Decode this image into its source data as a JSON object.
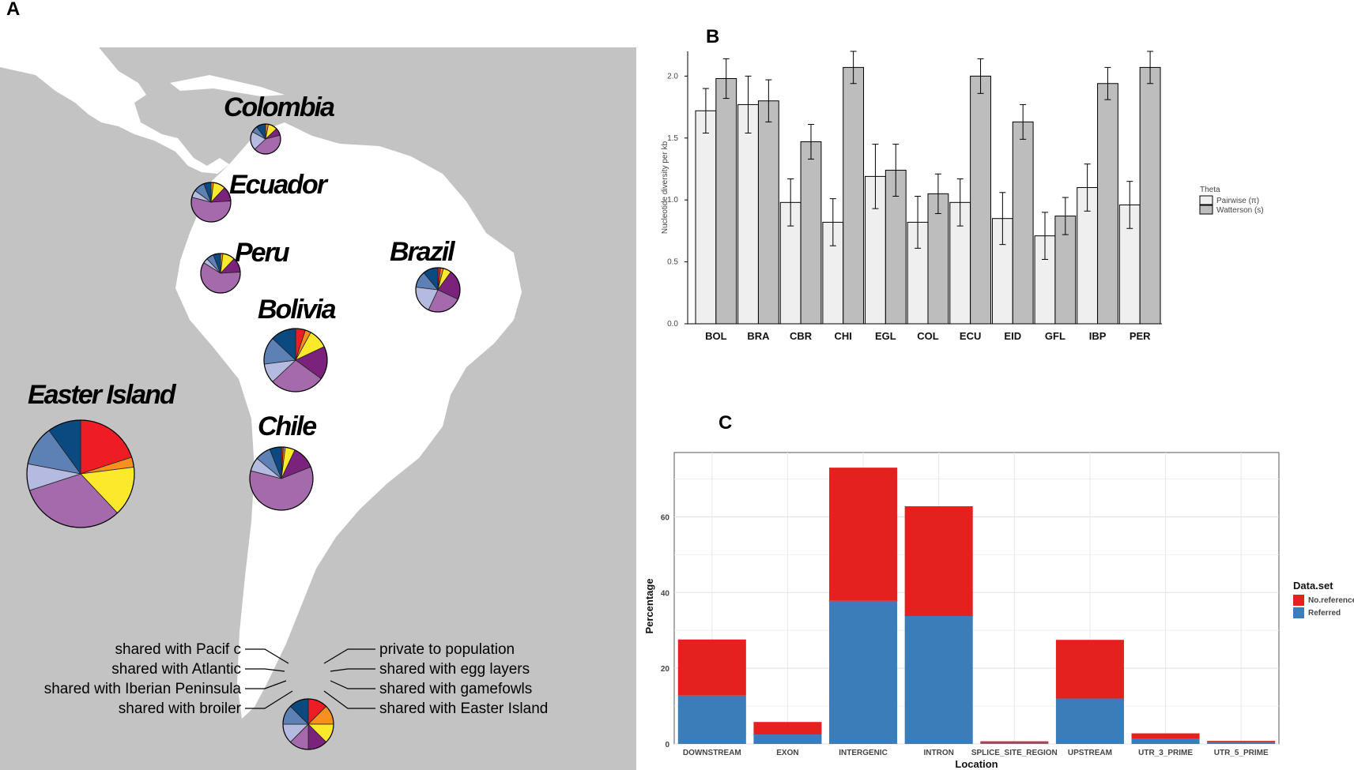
{
  "panels": {
    "a": "A",
    "b": "B",
    "c": "C"
  },
  "map": {
    "colors": {
      "private": "#ee1c25",
      "egg_layers": "#f7901e",
      "gamefowls": "#fde92c",
      "easter_island": "#7b237c",
      "broiler": "#a46aac",
      "iberian": "#b5bbe0",
      "atlantic": "#5d80b5",
      "pacific": "#0b4a80",
      "land": "#ffffff",
      "sea": "#c3c3c3"
    },
    "pies": [
      {
        "id": "colombia",
        "name": "Colombia",
        "fractions": {
          "private": 0,
          "egg_layers": 0.03,
          "gamefowls": 0.1,
          "easter_island": 0.08,
          "broiler": 0.42,
          "iberian": 0.2,
          "atlantic": 0.07,
          "pacific": 0.1
        }
      },
      {
        "id": "ecuador",
        "name": "Ecuador",
        "fractions": {
          "private": 0,
          "egg_layers": 0.02,
          "gamefowls": 0.1,
          "easter_island": 0.12,
          "broiler": 0.55,
          "iberian": 0.06,
          "atlantic": 0.09,
          "pacific": 0.06
        }
      },
      {
        "id": "peru",
        "name": "Peru",
        "fractions": {
          "private": 0,
          "egg_layers": 0.02,
          "gamefowls": 0.1,
          "easter_island": 0.12,
          "broiler": 0.6,
          "iberian": 0.04,
          "atlantic": 0.06,
          "pacific": 0.06
        }
      },
      {
        "id": "brazil",
        "name": "Brazil",
        "fractions": {
          "private": 0.02,
          "egg_layers": 0.02,
          "gamefowls": 0.06,
          "easter_island": 0.22,
          "broiler": 0.25,
          "iberian": 0.2,
          "atlantic": 0.12,
          "pacific": 0.11
        }
      },
      {
        "id": "bolivia",
        "name": "Bolivia",
        "fractions": {
          "private": 0.05,
          "egg_layers": 0.03,
          "gamefowls": 0.1,
          "easter_island": 0.17,
          "broiler": 0.28,
          "iberian": 0.1,
          "atlantic": 0.14,
          "pacific": 0.13
        }
      },
      {
        "id": "chile",
        "name": "Chile",
        "fractions": {
          "private": 0.01,
          "egg_layers": 0.01,
          "gamefowls": 0.05,
          "easter_island": 0.12,
          "broiler": 0.6,
          "iberian": 0.07,
          "atlantic": 0.08,
          "pacific": 0.06
        }
      },
      {
        "id": "easter-island",
        "name": "Easter Island",
        "fractions": {
          "private": 0.2,
          "egg_layers": 0.03,
          "gamefowls": 0.15,
          "easter_island": 0,
          "broiler": 0.32,
          "iberian": 0.08,
          "atlantic": 0.12,
          "pacific": 0.1
        }
      }
    ],
    "legend_pie": {
      "private": 0.125,
      "egg_layers": 0.125,
      "gamefowls": 0.125,
      "easter_island": 0.125,
      "broiler": 0.125,
      "iberian": 0.125,
      "atlantic": 0.125,
      "pacific": 0.125
    },
    "legend_left": [
      "shared with Pacif c",
      "shared with Atlantic",
      "shared with Iberian Peninsula",
      "shared with broiler"
    ],
    "legend_right": [
      "private to population",
      "shared with egg layers",
      "shared with gamefowls",
      "shared with Easter Island"
    ]
  },
  "chart_data": [
    {
      "type": "bar",
      "panel": "B",
      "ylabel": "Nucleotide diversity per kb",
      "ylim": [
        0,
        2.2
      ],
      "yticks": [
        "0.0",
        "0.5",
        "1.0",
        "1.5",
        "2.0"
      ],
      "categories": [
        "BOL",
        "BRA",
        "CBR",
        "CHI",
        "EGL",
        "COL",
        "ECU",
        "EID",
        "GFL",
        "IBP",
        "PER"
      ],
      "legend_title": "Theta",
      "colors": {
        "pairwise": "#efefef",
        "watterson": "#bdbdbd"
      },
      "series": [
        {
          "name": "Pairwise (π)",
          "values": [
            1.72,
            1.77,
            0.98,
            0.82,
            1.19,
            0.82,
            0.98,
            0.85,
            0.71,
            1.1,
            0.96
          ],
          "errors": [
            0.18,
            0.23,
            0.19,
            0.19,
            0.26,
            0.21,
            0.19,
            0.21,
            0.19,
            0.19,
            0.19
          ]
        },
        {
          "name": "Watterson (s)",
          "values": [
            1.98,
            1.8,
            1.47,
            2.07,
            1.24,
            1.05,
            2.0,
            1.63,
            0.87,
            1.94,
            2.07
          ],
          "errors": [
            0.16,
            0.17,
            0.14,
            0.13,
            0.21,
            0.16,
            0.14,
            0.14,
            0.15,
            0.13,
            0.13
          ]
        }
      ]
    },
    {
      "type": "bar",
      "stacked": true,
      "panel": "C",
      "xlabel": "Location",
      "ylabel": "Percentage",
      "ylim": [
        0,
        77
      ],
      "yticks": [
        "0",
        "20",
        "40",
        "60"
      ],
      "categories": [
        "DOWNSTREAM",
        "EXON",
        "INTERGENIC",
        "INTRON",
        "SPLICE_SITE_REGION",
        "UPSTREAM",
        "UTR_3_PRIME",
        "UTR_5_PRIME"
      ],
      "legend_title": "Data.set",
      "colors": {
        "referred": "#3b7db8",
        "noreference": "#e4211f"
      },
      "series": [
        {
          "name": "Referred",
          "values": [
            12.8,
            2.5,
            37.8,
            33.8,
            0.3,
            12.0,
            1.3,
            0.4
          ]
        },
        {
          "name": "No.reference",
          "values": [
            14.8,
            3.3,
            35.2,
            29.0,
            0.4,
            15.5,
            1.5,
            0.4
          ]
        }
      ]
    }
  ]
}
